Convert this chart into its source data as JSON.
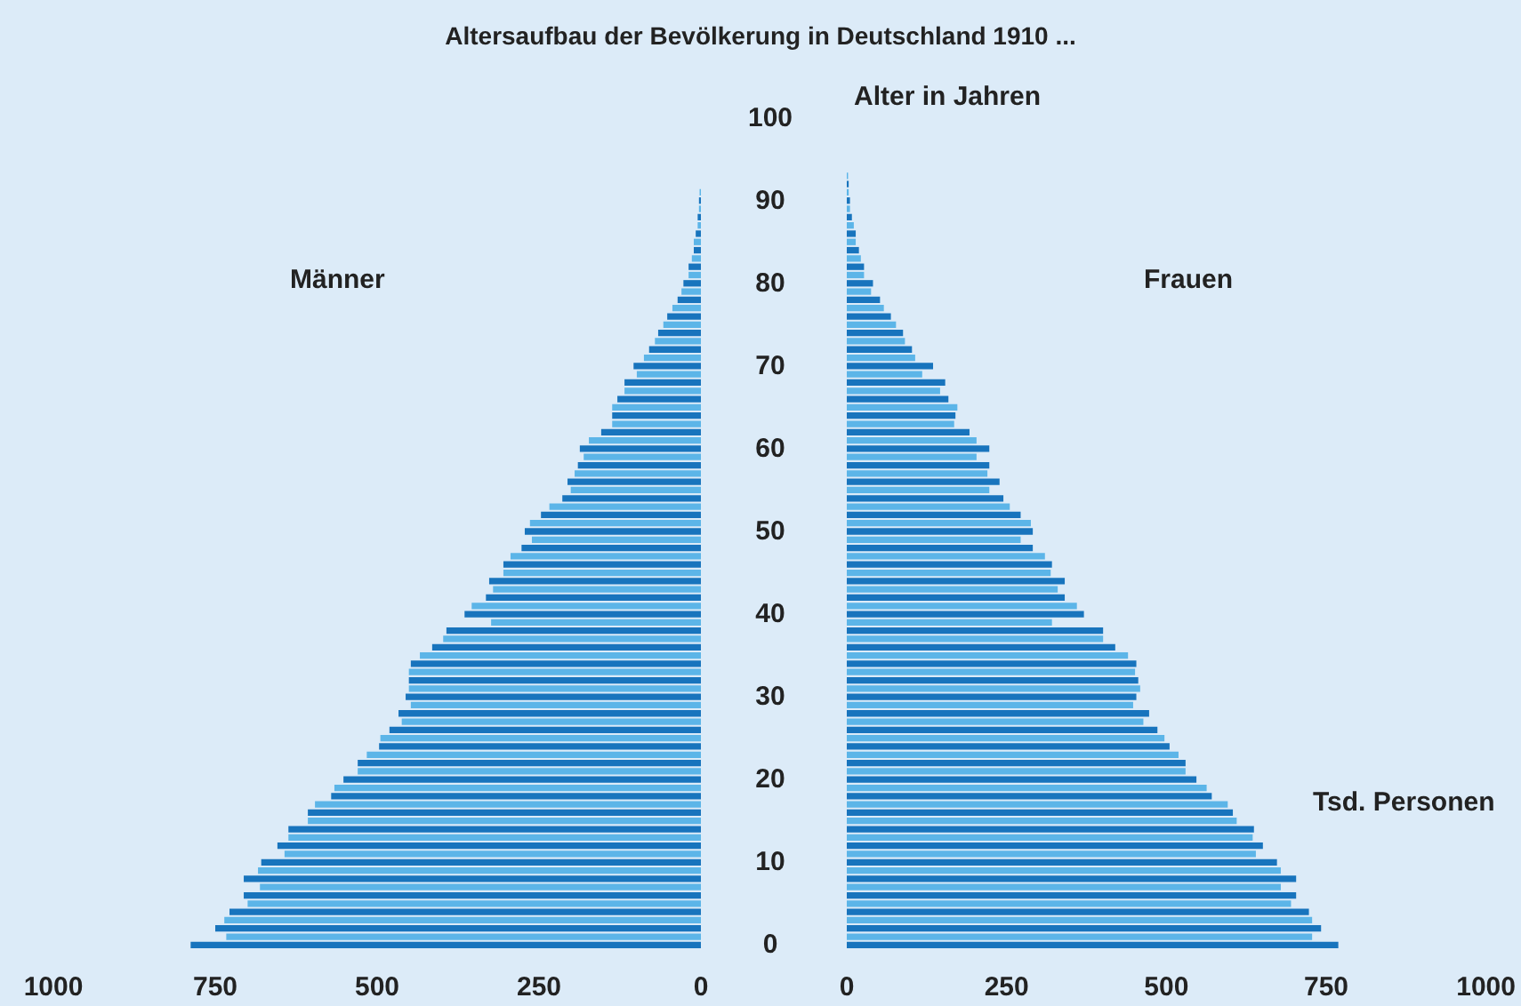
{
  "chart_data": [
    {
      "type": "bar",
      "orientation": "horizontal",
      "title": "Altersaufbau der Bevölkerung in Deutschland 1910 ...",
      "subtitle": "Männer",
      "ylabel": "Alter in Jahren",
      "categories": [
        "100",
        null,
        null,
        null,
        null,
        null,
        null,
        null,
        null,
        null,
        "90",
        null,
        null,
        null,
        null,
        null,
        null,
        null,
        null,
        null,
        "80",
        null,
        null,
        null,
        null,
        null,
        null,
        null,
        null,
        null,
        "70",
        null,
        null,
        null,
        null,
        null,
        null,
        null,
        null,
        null,
        "60",
        null,
        null,
        null,
        null,
        null,
        null,
        null,
        null,
        null,
        "50",
        null,
        null,
        null,
        null,
        null,
        null,
        null,
        null,
        null,
        "40",
        null,
        null,
        null,
        null,
        null,
        null,
        null,
        null,
        null,
        "30",
        null,
        null,
        null,
        null,
        null,
        null,
        null,
        null,
        null,
        "20",
        null,
        null,
        null,
        null,
        null,
        null,
        null,
        null,
        null,
        "10",
        null,
        null,
        null,
        null,
        null,
        null,
        null,
        null,
        null,
        "0"
      ],
      "values": [
        null,
        null,
        null,
        null,
        null,
        null,
        null,
        null,
        null,
        2,
        3,
        3,
        5,
        5,
        8,
        11,
        11,
        14,
        19,
        19,
        27,
        30,
        36,
        44,
        52,
        58,
        66,
        71,
        80,
        88,
        104,
        99,
        118,
        118,
        129,
        137,
        137,
        137,
        154,
        173,
        187,
        181,
        190,
        195,
        206,
        201,
        214,
        234,
        247,
        264,
        272,
        261,
        277,
        294,
        305,
        305,
        327,
        321,
        332,
        354,
        365,
        324,
        393,
        398,
        415,
        434,
        448,
        451,
        451,
        451,
        456,
        448,
        467,
        462,
        481,
        495,
        497,
        516,
        530,
        530,
        552,
        566,
        571,
        596,
        607,
        607,
        637,
        637,
        654,
        643,
        679,
        684,
        706,
        681,
        706,
        700,
        728,
        736,
        750,
        733,
        788
      ],
      "colors": [
        "#1874bd",
        "#5cb5e8",
        "#1874bd",
        "#5cb5e8",
        "#1874bd",
        "#5cb5e8",
        "#1874bd",
        "#5cb5e8",
        "#1874bd",
        "#5cb5e8",
        "#1874bd",
        "#5cb5e8",
        "#1874bd",
        "#5cb5e8",
        "#1874bd",
        "#5cb5e8",
        "#1874bd",
        "#5cb5e8",
        "#1874bd",
        "#5cb5e8",
        "#1874bd",
        "#5cb5e8",
        "#1874bd",
        "#5cb5e8",
        "#1874bd",
        "#5cb5e8",
        "#1874bd",
        "#5cb5e8",
        "#1874bd",
        "#5cb5e8",
        "#1874bd",
        "#5cb5e8",
        "#1874bd",
        "#5cb5e8",
        "#1874bd",
        "#5cb5e8",
        "#1874bd",
        "#5cb5e8",
        "#1874bd",
        "#5cb5e8",
        "#1874bd",
        "#5cb5e8",
        "#1874bd",
        "#5cb5e8",
        "#1874bd",
        "#5cb5e8",
        "#1874bd",
        "#5cb5e8",
        "#1874bd",
        "#5cb5e8",
        "#1874bd",
        "#5cb5e8",
        "#1874bd",
        "#5cb5e8",
        "#1874bd",
        "#5cb5e8",
        "#1874bd",
        "#5cb5e8",
        "#1874bd",
        "#5cb5e8",
        "#1874bd",
        "#5cb5e8",
        "#1874bd",
        "#5cb5e8",
        "#1874bd",
        "#5cb5e8",
        "#1874bd",
        "#5cb5e8",
        "#1874bd",
        "#5cb5e8",
        "#1874bd",
        "#5cb5e8",
        "#1874bd",
        "#5cb5e8",
        "#1874bd",
        "#5cb5e8",
        "#1874bd",
        "#5cb5e8",
        "#1874bd",
        "#5cb5e8",
        "#1874bd",
        "#5cb5e8",
        "#1874bd",
        "#5cb5e8",
        "#1874bd",
        "#5cb5e8",
        "#1874bd",
        "#5cb5e8",
        "#1874bd",
        "#5cb5e8",
        "#1874bd",
        "#5cb5e8",
        "#1874bd",
        "#5cb5e8",
        "#1874bd",
        "#5cb5e8",
        "#1874bd",
        "#5cb5e8",
        "#1874bd",
        "#5cb5e8",
        "#1874bd"
      ],
      "xlim": [
        1000,
        0
      ],
      "xticks": [
        1000,
        750,
        500,
        250,
        0
      ]
    },
    {
      "type": "bar",
      "orientation": "horizontal",
      "subtitle": "Frauen",
      "xlabel": "Tsd. Personen",
      "tick_labels": "x",
      "categories": [
        "100",
        null,
        null,
        null,
        null,
        null,
        null,
        null,
        null,
        null,
        "90",
        null,
        null,
        null,
        null,
        null,
        null,
        null,
        null,
        null,
        "80",
        null,
        null,
        null,
        null,
        null,
        null,
        null,
        null,
        null,
        "70",
        null,
        null,
        null,
        null,
        null,
        null,
        null,
        null,
        null,
        "60",
        null,
        null,
        null,
        null,
        null,
        null,
        null,
        null,
        null,
        "50",
        null,
        null,
        null,
        null,
        null,
        null,
        null,
        null,
        null,
        "40",
        null,
        null,
        null,
        null,
        null,
        null,
        null,
        null,
        null,
        "30",
        null,
        null,
        null,
        null,
        null,
        null,
        null,
        null,
        null,
        "20",
        null,
        null,
        null,
        null,
        null,
        null,
        null,
        null,
        null,
        "10",
        null,
        null,
        null,
        null,
        null,
        null,
        null,
        null,
        null,
        "0"
      ],
      "values": [
        null,
        null,
        null,
        null,
        null,
        null,
        null,
        2,
        3,
        3,
        5,
        5,
        8,
        11,
        14,
        14,
        19,
        22,
        27,
        27,
        41,
        38,
        52,
        58,
        69,
        77,
        88,
        91,
        102,
        107,
        135,
        118,
        154,
        146,
        159,
        173,
        170,
        168,
        192,
        203,
        223,
        203,
        223,
        220,
        239,
        223,
        245,
        255,
        272,
        288,
        291,
        272,
        291,
        310,
        321,
        319,
        341,
        330,
        341,
        360,
        371,
        321,
        401,
        401,
        420,
        440,
        453,
        451,
        456,
        459,
        453,
        448,
        473,
        464,
        486,
        497,
        505,
        519,
        530,
        530,
        547,
        563,
        571,
        596,
        604,
        610,
        637,
        635,
        651,
        640,
        673,
        679,
        703,
        679,
        703,
        695,
        723,
        728,
        742,
        728,
        769
      ],
      "colors": [
        "#1874bd",
        "#5cb5e8",
        "#1874bd",
        "#5cb5e8",
        "#1874bd",
        "#5cb5e8",
        "#1874bd",
        "#5cb5e8",
        "#1874bd",
        "#5cb5e8",
        "#1874bd",
        "#5cb5e8",
        "#1874bd",
        "#5cb5e8",
        "#1874bd",
        "#5cb5e8",
        "#1874bd",
        "#5cb5e8",
        "#1874bd",
        "#5cb5e8",
        "#1874bd",
        "#5cb5e8",
        "#1874bd",
        "#5cb5e8",
        "#1874bd",
        "#5cb5e8",
        "#1874bd",
        "#5cb5e8",
        "#1874bd",
        "#5cb5e8",
        "#1874bd",
        "#5cb5e8",
        "#1874bd",
        "#5cb5e8",
        "#1874bd",
        "#5cb5e8",
        "#1874bd",
        "#5cb5e8",
        "#1874bd",
        "#5cb5e8",
        "#1874bd",
        "#5cb5e8",
        "#1874bd",
        "#5cb5e8",
        "#1874bd",
        "#5cb5e8",
        "#1874bd",
        "#5cb5e8",
        "#1874bd",
        "#5cb5e8",
        "#1874bd",
        "#5cb5e8",
        "#1874bd",
        "#5cb5e8",
        "#1874bd",
        "#5cb5e8",
        "#1874bd",
        "#5cb5e8",
        "#1874bd",
        "#5cb5e8",
        "#1874bd",
        "#5cb5e8",
        "#1874bd",
        "#5cb5e8",
        "#1874bd",
        "#5cb5e8",
        "#1874bd",
        "#5cb5e8",
        "#1874bd",
        "#5cb5e8",
        "#1874bd",
        "#5cb5e8",
        "#1874bd",
        "#5cb5e8",
        "#1874bd",
        "#5cb5e8",
        "#1874bd",
        "#5cb5e8",
        "#1874bd",
        "#5cb5e8",
        "#1874bd",
        "#5cb5e8",
        "#1874bd",
        "#5cb5e8",
        "#1874bd",
        "#5cb5e8",
        "#1874bd",
        "#5cb5e8",
        "#1874bd",
        "#5cb5e8",
        "#1874bd",
        "#5cb5e8",
        "#1874bd",
        "#5cb5e8",
        "#1874bd",
        "#5cb5e8",
        "#1874bd",
        "#5cb5e8",
        "#1874bd",
        "#5cb5e8",
        "#1874bd"
      ],
      "xlim": [
        0,
        1000
      ],
      "xticks": [
        0,
        250,
        500,
        750,
        1000
      ]
    }
  ]
}
